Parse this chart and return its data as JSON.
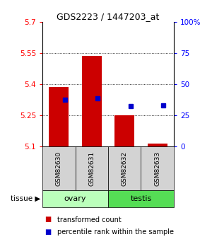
{
  "title": "GDS2223 / 1447203_at",
  "samples": [
    "GSM82630",
    "GSM82631",
    "GSM82632",
    "GSM82633"
  ],
  "bar_bottom": 5.1,
  "bar_tops": [
    5.385,
    5.537,
    5.25,
    5.112
  ],
  "percentile_values": [
    37.5,
    38.5,
    32.5,
    33.0
  ],
  "ylim_left": [
    5.1,
    5.7
  ],
  "ylim_right": [
    0,
    100
  ],
  "yticks_left": [
    5.1,
    5.25,
    5.4,
    5.55,
    5.7
  ],
  "yticks_right": [
    0,
    25,
    50,
    75,
    100
  ],
  "ytick_labels_left": [
    "5.1",
    "5.25",
    "5.4",
    "5.55",
    "5.7"
  ],
  "ytick_labels_right": [
    "0",
    "25",
    "50",
    "75",
    "100%"
  ],
  "bar_color": "#cc0000",
  "dot_color": "#0000cc",
  "tissue_groups": [
    {
      "label": "ovary",
      "samples": [
        0,
        1
      ],
      "color": "#bbffbb"
    },
    {
      "label": "testis",
      "samples": [
        2,
        3
      ],
      "color": "#55dd55"
    }
  ],
  "legend_red": "transformed count",
  "legend_blue": "percentile rank within the sample",
  "fig_width": 3.0,
  "fig_height": 3.45
}
